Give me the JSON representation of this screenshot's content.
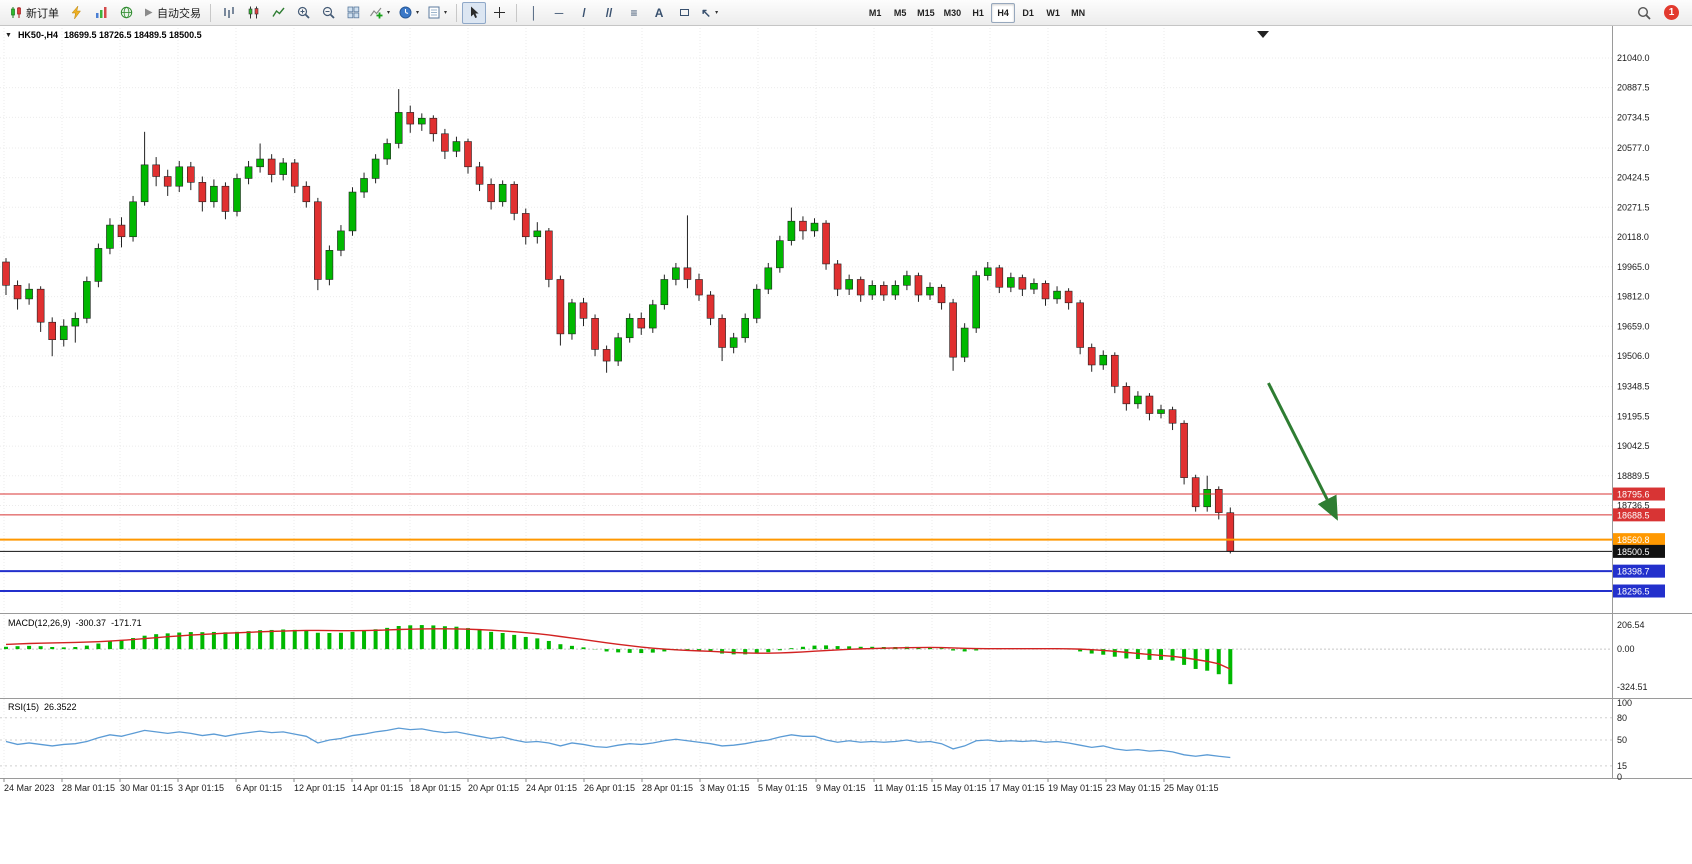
{
  "toolbar": {
    "new_order": "新订单",
    "auto_trading": "自动交易",
    "timeframes": [
      "M1",
      "M5",
      "M15",
      "M30",
      "H1",
      "H4",
      "D1",
      "W1",
      "MN"
    ],
    "active_timeframe": "H4",
    "badge_count": "1"
  },
  "chart_header": {
    "title_symbol": "HK50-,H4",
    "title_ohlc": "18699.5 18726.5 18489.5 18500.5"
  },
  "chart_data": {
    "type": "candlestick",
    "symbol": "HK50-",
    "period": "H4",
    "ohlc_current": {
      "open": 18699.5,
      "high": 18726.5,
      "low": 18489.5,
      "close": 18500.5
    },
    "price_ticks": [
      21040.0,
      20887.5,
      20734.5,
      20577.0,
      20424.5,
      20271.5,
      20118.0,
      19965.0,
      19812.0,
      19659.0,
      19506.0,
      19348.5,
      19195.5,
      19042.5,
      18889.5,
      18736.5
    ],
    "time_labels": [
      "24 Mar 2023",
      "28 Mar 01:15",
      "30 Mar 01:15",
      "3 Apr 01:15",
      "6 Apr 01:15",
      "12 Apr 01:15",
      "14 Apr 01:15",
      "18 Apr 01:15",
      "20 Apr 01:15",
      "24 Apr 01:15",
      "26 Apr 01:15",
      "28 Apr 01:15",
      "3 May 01:15",
      "5 May 01:15",
      "9 May 01:15",
      "11 May 01:15",
      "15 May 01:15",
      "17 May 01:15",
      "19 May 01:15",
      "23 May 01:15",
      "25 May 01:15"
    ],
    "candles": [
      [
        19990,
        20010,
        19820,
        19870
      ],
      [
        19870,
        19895,
        19745,
        19800
      ],
      [
        19800,
        19880,
        19770,
        19850
      ],
      [
        19850,
        19865,
        19630,
        19680
      ],
      [
        19680,
        19705,
        19505,
        19590
      ],
      [
        19590,
        19695,
        19555,
        19660
      ],
      [
        19660,
        19730,
        19575,
        19700
      ],
      [
        19700,
        19915,
        19675,
        19890
      ],
      [
        19890,
        20085,
        19860,
        20060
      ],
      [
        20060,
        20215,
        20030,
        20180
      ],
      [
        20180,
        20220,
        20065,
        20120
      ],
      [
        20120,
        20330,
        20095,
        20300
      ],
      [
        20300,
        20660,
        20280,
        20490
      ],
      [
        20490,
        20530,
        20380,
        20430
      ],
      [
        20430,
        20465,
        20330,
        20380
      ],
      [
        20380,
        20510,
        20350,
        20480
      ],
      [
        20480,
        20505,
        20360,
        20400
      ],
      [
        20400,
        20430,
        20250,
        20300
      ],
      [
        20300,
        20415,
        20270,
        20380
      ],
      [
        20380,
        20400,
        20210,
        20250
      ],
      [
        20250,
        20445,
        20225,
        20420
      ],
      [
        20420,
        20510,
        20390,
        20480
      ],
      [
        20480,
        20600,
        20450,
        20520
      ],
      [
        20520,
        20545,
        20400,
        20440
      ],
      [
        20440,
        20525,
        20410,
        20500
      ],
      [
        20500,
        20520,
        20345,
        20380
      ],
      [
        20380,
        20405,
        20270,
        20300
      ],
      [
        20300,
        20320,
        19845,
        19900
      ],
      [
        19900,
        20075,
        19870,
        20050
      ],
      [
        20050,
        20180,
        20020,
        20150
      ],
      [
        20150,
        20375,
        20125,
        20350
      ],
      [
        20350,
        20450,
        20320,
        20420
      ],
      [
        20420,
        20545,
        20395,
        20520
      ],
      [
        20520,
        20625,
        20490,
        20600
      ],
      [
        20600,
        20880,
        20575,
        20760
      ],
      [
        20760,
        20795,
        20655,
        20700
      ],
      [
        20700,
        20755,
        20665,
        20730
      ],
      [
        20730,
        20745,
        20610,
        20650
      ],
      [
        20650,
        20675,
        20520,
        20560
      ],
      [
        20560,
        20635,
        20530,
        20610
      ],
      [
        20610,
        20625,
        20445,
        20480
      ],
      [
        20480,
        20505,
        20355,
        20390
      ],
      [
        20390,
        20420,
        20260,
        20300
      ],
      [
        20300,
        20410,
        20275,
        20390
      ],
      [
        20390,
        20405,
        20205,
        20240
      ],
      [
        20240,
        20265,
        20080,
        20120
      ],
      [
        20120,
        20195,
        20085,
        20150
      ],
      [
        20150,
        20165,
        19860,
        19900
      ],
      [
        19900,
        19920,
        19560,
        19620
      ],
      [
        19620,
        19800,
        19590,
        19780
      ],
      [
        19780,
        19805,
        19660,
        19700
      ],
      [
        19700,
        19720,
        19505,
        19540
      ],
      [
        19540,
        19560,
        19420,
        19480
      ],
      [
        19480,
        19625,
        19455,
        19600
      ],
      [
        19600,
        19725,
        19575,
        19700
      ],
      [
        19700,
        19730,
        19615,
        19650
      ],
      [
        19650,
        19795,
        19625,
        19770
      ],
      [
        19770,
        19925,
        19745,
        19900
      ],
      [
        19900,
        19985,
        19870,
        19960
      ],
      [
        19960,
        20230,
        19855,
        19900
      ],
      [
        19900,
        19930,
        19790,
        19820
      ],
      [
        19820,
        19840,
        19665,
        19700
      ],
      [
        19700,
        19720,
        19480,
        19550
      ],
      [
        19550,
        19625,
        19520,
        19600
      ],
      [
        19600,
        19725,
        19575,
        19700
      ],
      [
        19700,
        19875,
        19675,
        19850
      ],
      [
        19850,
        19985,
        19825,
        19960
      ],
      [
        19960,
        20125,
        19935,
        20100
      ],
      [
        20100,
        20270,
        20075,
        20200
      ],
      [
        20200,
        20225,
        20105,
        20150
      ],
      [
        20150,
        20215,
        20120,
        20190
      ],
      [
        20190,
        20205,
        19950,
        19980
      ],
      [
        19980,
        20000,
        19815,
        19850
      ],
      [
        19850,
        19925,
        19820,
        19900
      ],
      [
        19900,
        19915,
        19785,
        19820
      ],
      [
        19820,
        19895,
        19795,
        19870
      ],
      [
        19870,
        19890,
        19790,
        19820
      ],
      [
        19820,
        19895,
        19795,
        19870
      ],
      [
        19870,
        19945,
        19845,
        19920
      ],
      [
        19920,
        19935,
        19785,
        19820
      ],
      [
        19820,
        19885,
        19795,
        19860
      ],
      [
        19860,
        19875,
        19745,
        19780
      ],
      [
        19780,
        19800,
        19430,
        19500
      ],
      [
        19500,
        19675,
        19475,
        19650
      ],
      [
        19650,
        19945,
        19625,
        19920
      ],
      [
        19920,
        19990,
        19895,
        19960
      ],
      [
        19960,
        19975,
        19830,
        19860
      ],
      [
        19860,
        19935,
        19835,
        19910
      ],
      [
        19910,
        19925,
        19815,
        19850
      ],
      [
        19850,
        19905,
        19825,
        19880
      ],
      [
        19880,
        19895,
        19765,
        19800
      ],
      [
        19800,
        19865,
        19775,
        19840
      ],
      [
        19840,
        19855,
        19745,
        19780
      ],
      [
        19780,
        19795,
        19515,
        19550
      ],
      [
        19550,
        19570,
        19425,
        19460
      ],
      [
        19460,
        19535,
        19435,
        19510
      ],
      [
        19510,
        19525,
        19315,
        19350
      ],
      [
        19350,
        19370,
        19225,
        19260
      ],
      [
        19260,
        19325,
        19235,
        19300
      ],
      [
        19300,
        19315,
        19175,
        19210
      ],
      [
        19210,
        19255,
        19185,
        19230
      ],
      [
        19230,
        19245,
        19125,
        19160
      ],
      [
        19160,
        19175,
        18845,
        18880
      ],
      [
        18880,
        18895,
        18705,
        18730
      ],
      [
        18730,
        18890,
        18705,
        18820
      ],
      [
        18820,
        18835,
        18665,
        18700
      ],
      [
        18699.5,
        18726.5,
        18489.5,
        18500.5
      ]
    ],
    "hlines": [
      {
        "price": 18795.6,
        "label": "18795.6",
        "color": "#d83434",
        "width": 1
      },
      {
        "price": 18688.5,
        "label": "18688.5",
        "color": "#d83434",
        "width": 1
      },
      {
        "price": 18560.8,
        "label": "18560.8",
        "color": "#ff9800",
        "width": 2
      },
      {
        "price": 18500.5,
        "label": "18500.5",
        "color": "#111111",
        "width": 1,
        "role": "current-price"
      },
      {
        "price": 18398.7,
        "label": "18398.7",
        "color": "#2330cc",
        "width": 2
      },
      {
        "price": 18296.5,
        "label": "18296.5",
        "color": "#2330cc",
        "width": 2
      }
    ],
    "trend_arrow": {
      "from": {
        "bar": 109.3,
        "price": 19367
      },
      "to": {
        "bar": 115.2,
        "price": 18672
      },
      "color": "#2e7d32"
    },
    "macd": {
      "label": "MACD(12,26,9)",
      "value_main": "-300.37",
      "value_signal": "-171.71",
      "axis_ticks": [
        "206.54",
        "0.00",
        "-324.51"
      ],
      "range": [
        -324.51,
        206.54
      ],
      "histogram": [
        20,
        25,
        28,
        25,
        18,
        15,
        18,
        30,
        48,
        65,
        78,
        95,
        115,
        128,
        135,
        142,
        146,
        145,
        147,
        144,
        148,
        154,
        162,
        164,
        168,
        165,
        158,
        140,
        138,
        140,
        148,
        158,
        170,
        182,
        198,
        204,
        206,
        203,
        196,
        192,
        180,
        165,
        148,
        138,
        122,
        104,
        92,
        70,
        42,
        28,
        15,
        -2,
        -20,
        -28,
        -32,
        -34,
        -30,
        -20,
        -10,
        -8,
        -12,
        -22,
        -38,
        -45,
        -45,
        -38,
        -26,
        -10,
        8,
        20,
        30,
        32,
        26,
        24,
        20,
        20,
        18,
        18,
        20,
        16,
        14,
        8,
        -12,
        -20,
        -12,
        -2,
        -2,
        2,
        2,
        4,
        0,
        2,
        -4,
        -20,
        -38,
        -48,
        -65,
        -80,
        -85,
        -92,
        -92,
        -98,
        -135,
        -170,
        -185,
        -215,
        -300.37
      ],
      "signal": [
        40,
        44,
        48,
        51,
        53,
        55,
        57,
        60,
        64,
        69,
        75,
        82,
        90,
        98,
        106,
        113,
        120,
        126,
        131,
        136,
        140,
        144,
        148,
        152,
        155,
        158,
        160,
        160,
        159,
        158,
        158,
        159,
        161,
        164,
        168,
        171,
        173,
        174,
        174,
        173,
        171,
        167,
        162,
        156,
        149,
        141,
        132,
        121,
        108,
        95,
        82,
        68,
        54,
        41,
        29,
        18,
        8,
        0,
        -6,
        -11,
        -15,
        -19,
        -24,
        -29,
        -33,
        -35,
        -35,
        -33,
        -29,
        -24,
        -18,
        -12,
        -7,
        -2,
        2,
        5,
        8,
        10,
        12,
        13,
        14,
        13,
        10,
        7,
        5,
        4,
        4,
        4,
        4,
        4,
        4,
        4,
        3,
        0,
        -5,
        -11,
        -19,
        -28,
        -37,
        -46,
        -54,
        -62,
        -74,
        -89,
        -105,
        -126,
        -171.71
      ]
    },
    "rsi": {
      "label": "RSI(15)",
      "value": "26.3522",
      "axis_ticks": [
        "100",
        "80",
        "50",
        "15",
        "0"
      ],
      "levels": [
        80,
        50,
        15
      ],
      "range": [
        0,
        100
      ],
      "values": [
        48,
        44,
        46,
        44,
        42,
        44,
        45,
        48,
        53,
        57,
        55,
        59,
        63,
        61,
        59,
        61,
        59,
        56,
        58,
        55,
        58,
        60,
        62,
        60,
        61,
        58,
        55,
        46,
        50,
        52,
        56,
        58,
        61,
        63,
        66,
        64,
        65,
        62,
        60,
        61,
        58,
        55,
        52,
        54,
        50,
        47,
        48,
        46,
        42,
        46,
        44,
        41,
        40,
        43,
        45,
        44,
        46,
        49,
        51,
        49,
        47,
        45,
        42,
        43,
        45,
        48,
        50,
        54,
        57,
        55,
        55,
        50,
        47,
        49,
        47,
        48,
        47,
        48,
        50,
        47,
        48,
        45,
        38,
        42,
        49,
        50,
        48,
        49,
        48,
        49,
        47,
        48,
        46,
        43,
        40,
        42,
        38,
        36,
        37,
        35,
        36,
        34,
        30,
        28,
        30,
        28,
        26.35
      ]
    }
  }
}
